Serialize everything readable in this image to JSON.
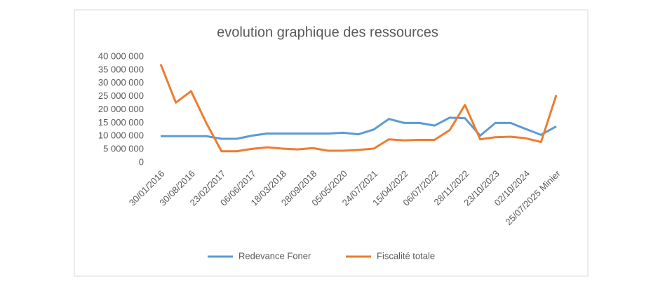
{
  "chart_data": {
    "type": "line",
    "title": "evolution graphique des ressources",
    "categories": [
      "30/01/2016",
      null,
      "30/08/2016",
      null,
      "23/02/2017",
      null,
      "06/06/2017",
      null,
      "18/03/2018",
      null,
      "28/09/2018",
      null,
      "05/05/2020",
      null,
      "24/07/2021",
      null,
      "15/04/2022",
      null,
      "06/07/2022",
      null,
      "28/11/2022",
      null,
      "23/10/2023",
      null,
      "02/10/2024",
      null,
      "25/07/2025 Minier"
    ],
    "series": [
      {
        "name": "Redevance Foner",
        "color": "#5b9bd5",
        "values": [
          10000000,
          10000000,
          10000000,
          10000000,
          9000000,
          9000000,
          10200000,
          11000000,
          11000000,
          11000000,
          11000000,
          11000000,
          11300000,
          10700000,
          12500000,
          16500000,
          15000000,
          15000000,
          14000000,
          17000000,
          16800000,
          10200000,
          15000000,
          15000000,
          12700000,
          10500000,
          13700000
        ]
      },
      {
        "name": "Fiscalité totale",
        "color": "#ed7d31",
        "values": [
          37200000,
          22700000,
          27000000,
          15000000,
          4300000,
          4300000,
          5200000,
          5800000,
          5300000,
          5000000,
          5500000,
          4500000,
          4500000,
          4800000,
          5300000,
          8800000,
          8400000,
          8600000,
          8600000,
          12300000,
          21800000,
          8800000,
          9600000,
          9800000,
          9200000,
          7800000,
          25500000
        ]
      }
    ],
    "ylim": [
      0,
      40000000
    ],
    "yticks": [
      0,
      {
        "value": 5000000,
        "label": "5 000 000"
      },
      {
        "value": 10000000,
        "label": "10 000 000"
      },
      {
        "value": 15000000,
        "label": "15 000 000"
      },
      {
        "value": 20000000,
        "label": "20 000 000"
      },
      {
        "value": 25000000,
        "label": "25 000 000"
      },
      {
        "value": 30000000,
        "label": "30 000 000"
      },
      {
        "value": 35000000,
        "label": "35 000 000"
      },
      {
        "value": 40000000,
        "label": "40 000 000"
      }
    ],
    "legend": "bottom"
  }
}
